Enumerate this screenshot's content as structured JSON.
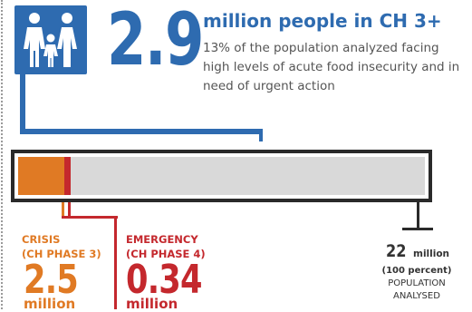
{
  "headline": {
    "number": "2.9",
    "title": "million people in CH 3+",
    "description": "13% of the population analyzed facing high levels of acute food insecurity and in need of urgent action"
  },
  "bar": {
    "total_million": 22,
    "crisis_million": 2.5,
    "emergency_million": 0.34,
    "colors": {
      "crisis": "#e07a24",
      "emergency": "#c4282d",
      "blue": "#2e6bb0",
      "track": "#d9d9d9"
    }
  },
  "crisis": {
    "label_line1": "CRISIS",
    "label_line2": "(CH PHASE 3)",
    "value": "2.5",
    "unit": "million"
  },
  "emergency": {
    "label_line1": "EMERGENCY",
    "label_line2": "(CH PHASE 4)",
    "value": "0.34",
    "unit": "million"
  },
  "total": {
    "value": "22",
    "unit": "million",
    "percent": "(100 percent)",
    "label_line1": "POPULATION",
    "label_line2": "ANALYSED"
  },
  "icons": {
    "family": "family-icon"
  }
}
